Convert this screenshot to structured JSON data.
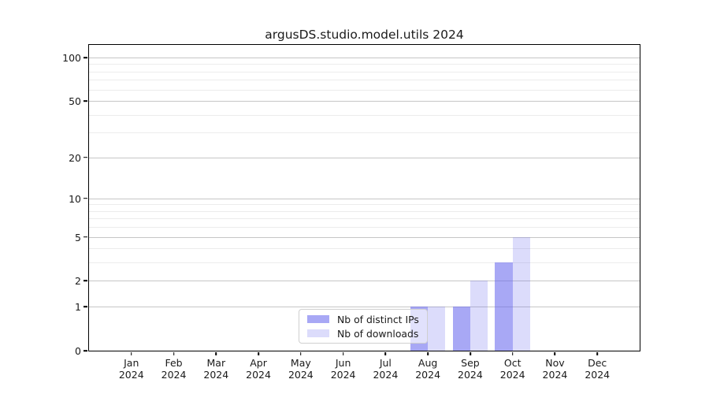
{
  "chart_data": {
    "type": "bar",
    "title": "argusDS.studio.model.utils 2024",
    "categories": [
      "Jan 2024",
      "Feb 2024",
      "Mar 2024",
      "Apr 2024",
      "May 2024",
      "Jun 2024",
      "Jul 2024",
      "Aug 2024",
      "Sep 2024",
      "Oct 2024",
      "Nov 2024",
      "Dec 2024"
    ],
    "series": [
      {
        "name": "Nb of distinct IPs",
        "values": [
          0,
          0,
          0,
          0,
          0,
          0,
          0,
          1,
          1,
          3,
          0,
          0
        ],
        "color": "rgba(102,102,238,0.57)",
        "side": "left"
      },
      {
        "name": "Nb of downloads",
        "values": [
          0,
          0,
          0,
          0,
          0,
          0,
          0,
          1,
          2,
          5,
          0,
          0
        ],
        "color": "rgba(102,102,238,0.23)",
        "side": "right"
      }
    ],
    "xlabel": "",
    "ylabel": "",
    "yscale": "log1p",
    "ylim": [
      0,
      121
    ],
    "y_major_ticks": [
      0,
      1,
      2,
      5,
      10,
      20,
      50,
      100
    ],
    "y_minor_gridlines": [
      3,
      4,
      6,
      7,
      8,
      9,
      30,
      40,
      60,
      70,
      80,
      90
    ],
    "grid": true,
    "legend_position": "lower center"
  },
  "legend": {
    "items": [
      {
        "label": "Nb of distinct IPs",
        "swatch": "rgba(102,102,238,0.57)"
      },
      {
        "label": "Nb of downloads",
        "swatch": "rgba(102,102,238,0.23)"
      }
    ]
  },
  "colors": {
    "background": "#ffffff",
    "spine": "#000000",
    "grid_major": "#c6c6c6",
    "grid_minor": "#ececec",
    "text": "#1a1a1a",
    "bar_base": "#6666ee"
  }
}
